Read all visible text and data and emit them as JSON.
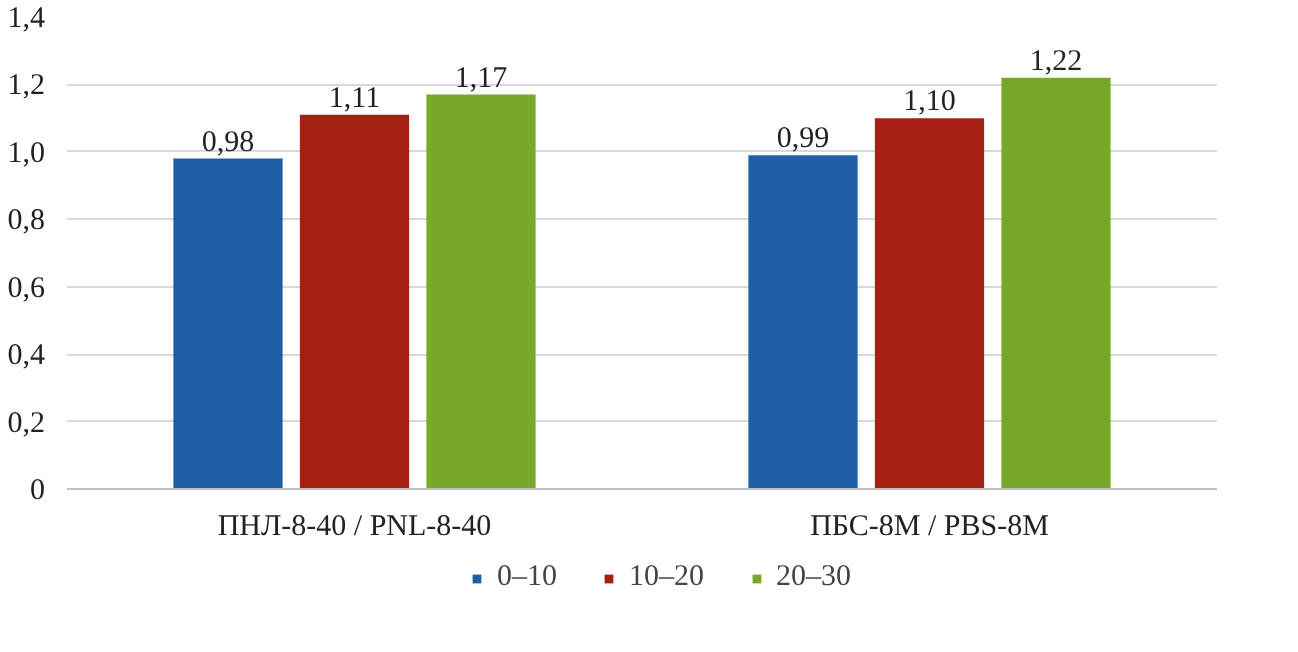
{
  "chart_data": {
    "type": "bar",
    "categories": [
      "ПНЛ-8-40 / PNL-8-40",
      "ПБС-8М / PBS-8M"
    ],
    "series": [
      {
        "name": "0–10",
        "color": "#1f5fa8",
        "values": [
          0.98,
          0.99
        ],
        "value_labels": [
          "0,98",
          "0,99"
        ]
      },
      {
        "name": "10–20",
        "color": "#a51f12",
        "values": [
          1.11,
          1.1
        ],
        "value_labels": [
          "1,11",
          "1,10"
        ]
      },
      {
        "name": "20–30",
        "color": "#78a82a",
        "values": [
          1.17,
          1.22
        ],
        "value_labels": [
          "1,17",
          "1,22"
        ]
      }
    ],
    "ylim": [
      0,
      1.4
    ],
    "yticks": [
      0,
      {
        "value": 0.2,
        "label": "0,2"
      },
      {
        "value": 0.4,
        "label": "0,4"
      },
      {
        "value": 0.6,
        "label": "0,6"
      },
      {
        "value": 0.8,
        "label": "0,8"
      },
      {
        "value": 1.0,
        "label": "1,0"
      },
      {
        "value": 1.2,
        "label": "1,2"
      },
      {
        "value": 1.4,
        "label": "1,4"
      }
    ],
    "grid": "y",
    "legend": "bottom"
  }
}
